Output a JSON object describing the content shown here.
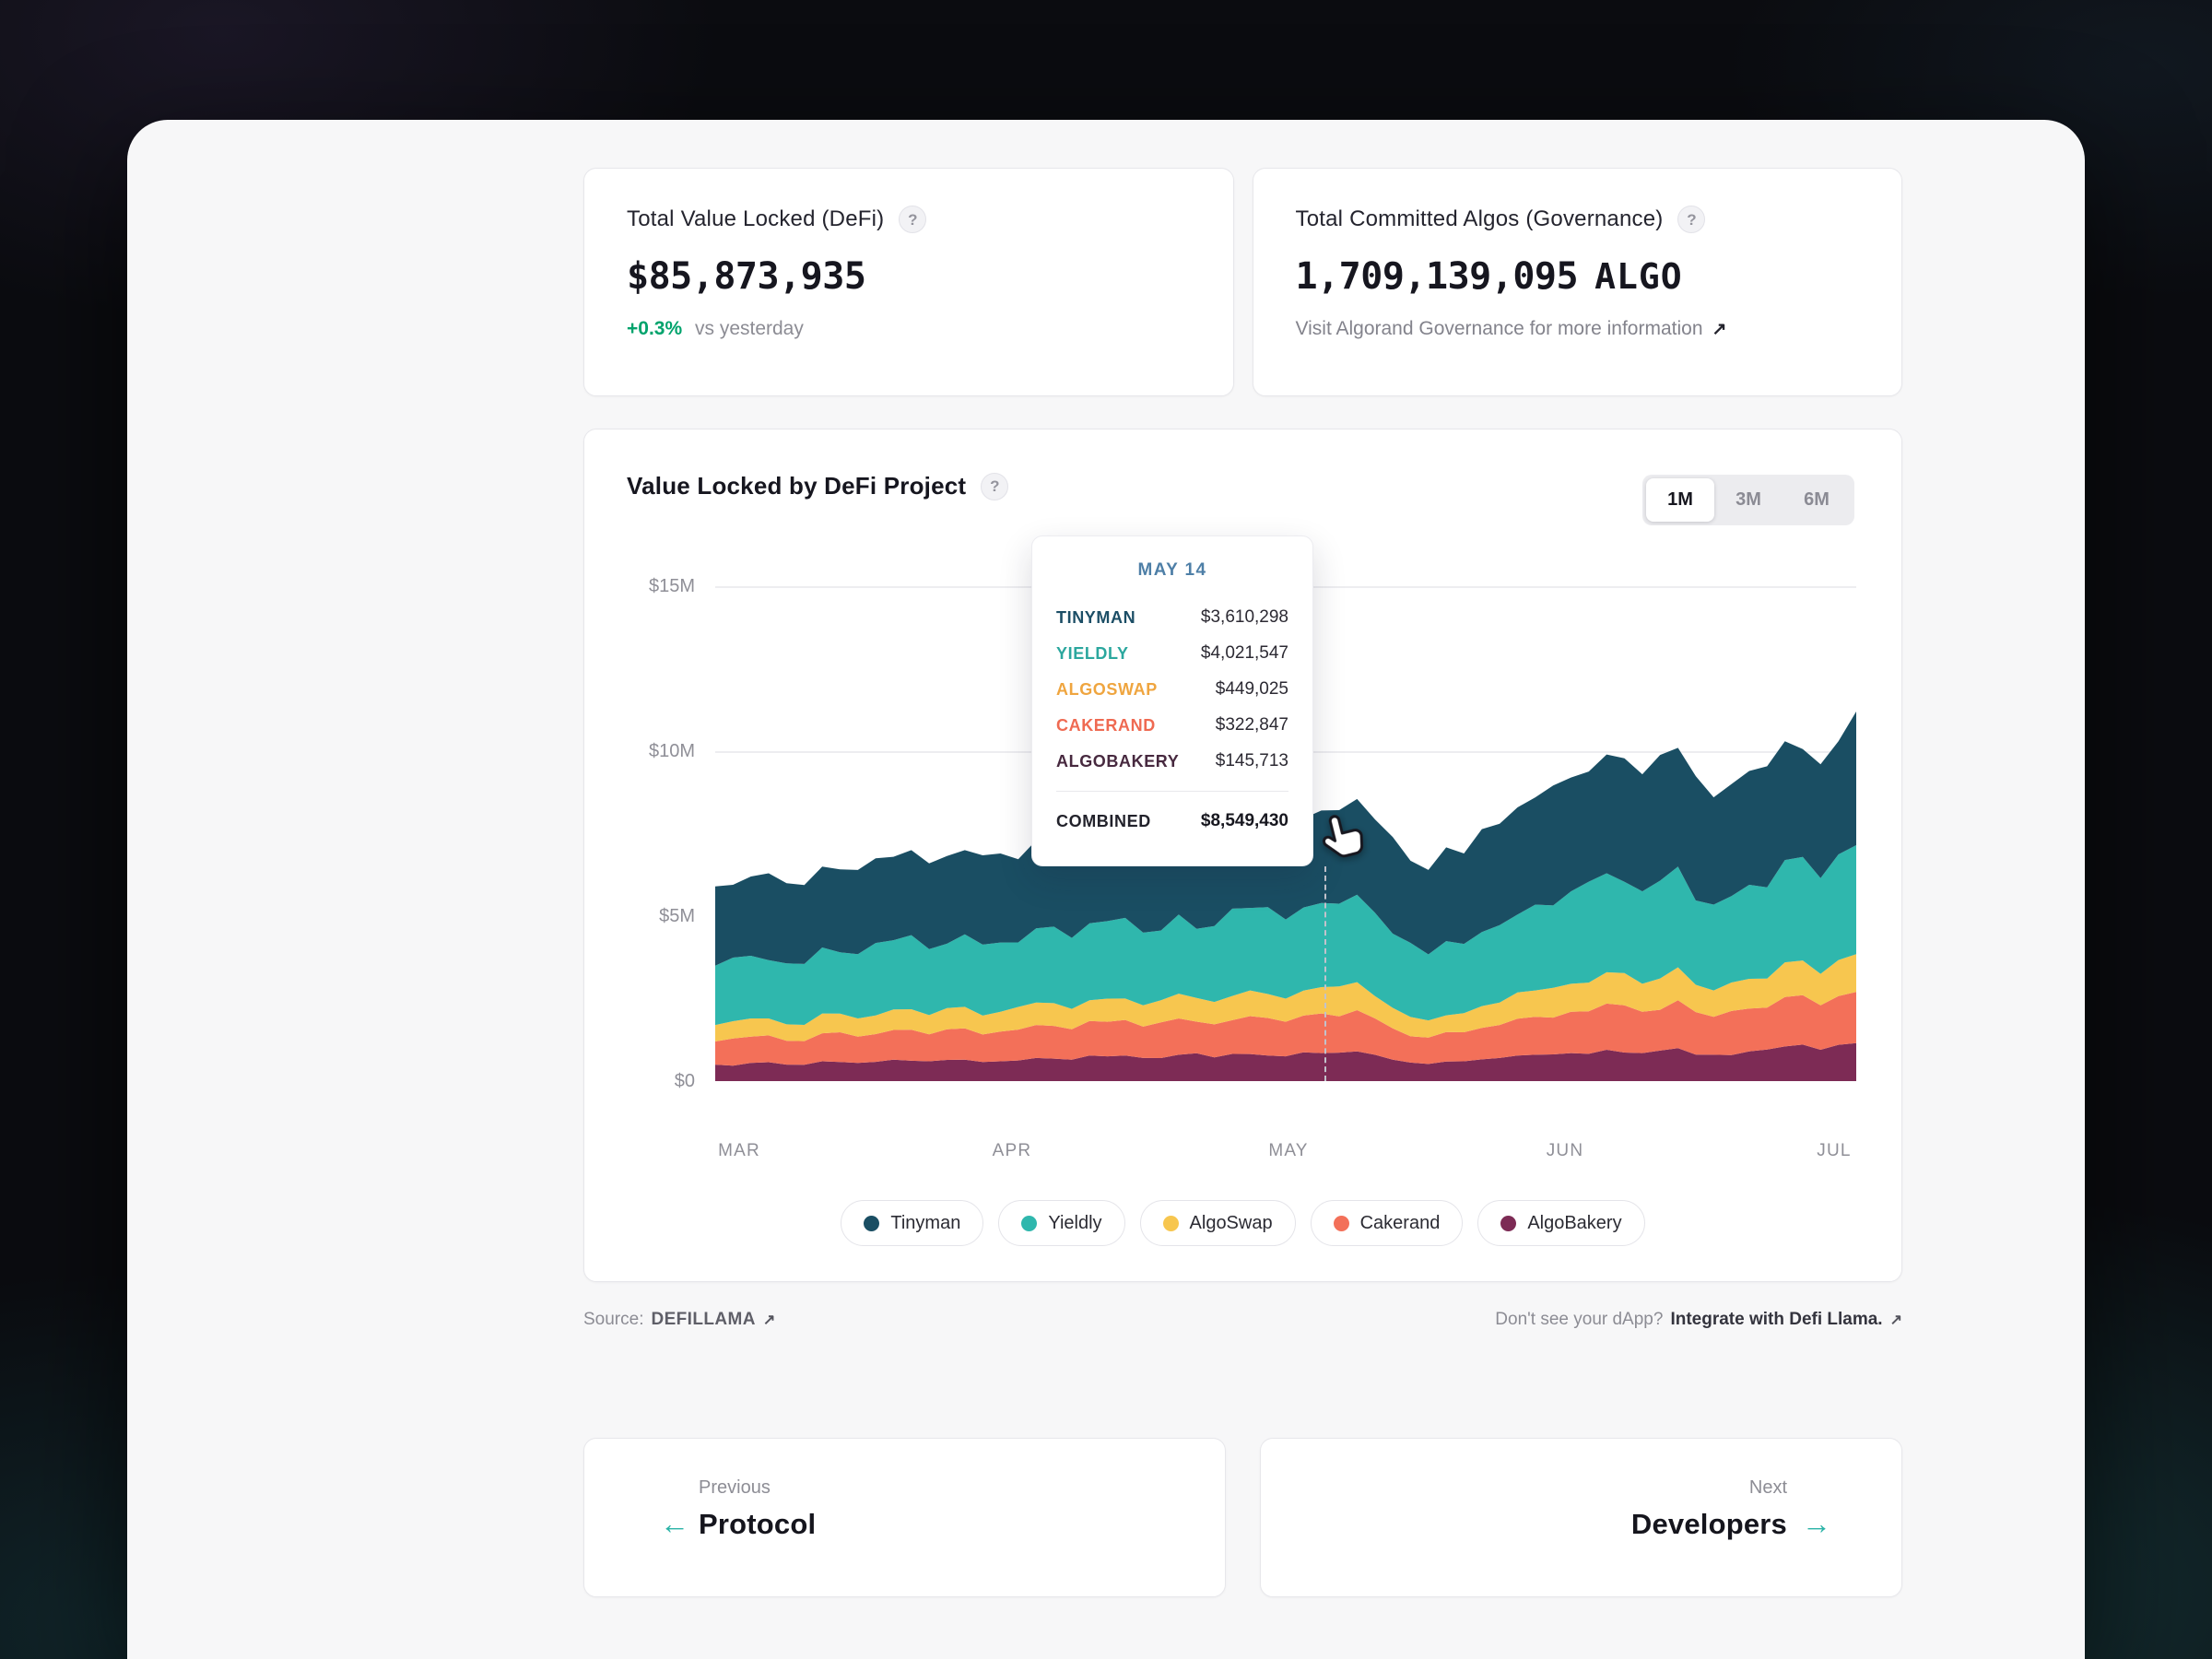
{
  "stats": {
    "tvl": {
      "title": "Total Value Locked (DeFi)",
      "value": "$85,873,935",
      "change": "+0.3%",
      "change_suffix": "vs yesterday"
    },
    "governance": {
      "title": "Total Committed Algos (Governance)",
      "value": "1,709,139,095",
      "unit": "ALGO",
      "link": "Visit Algorand Governance for more information",
      "link_arrow": "↗"
    }
  },
  "chart_card": {
    "title": "Value Locked by DeFi Project",
    "range_options": [
      "1M",
      "3M",
      "6M"
    ],
    "selected_range": "1M"
  },
  "chart_data": {
    "type": "area",
    "stacked": true,
    "title": "Value Locked by DeFi Project",
    "unit": "USD millions",
    "x_ticks": [
      "MAR",
      "APR",
      "MAY",
      "JUN",
      "JUL"
    ],
    "y_tick_labels": [
      "$15M",
      "$10M",
      "$5M",
      "$0"
    ],
    "y_gridlines_musd": [
      15,
      10,
      5
    ],
    "y_max_musd": 15,
    "legend_position": "bottom",
    "hover_x_frac": 0.535,
    "hover_date": "MAY 14",
    "series_order": "top-to-bottom (stacked bottom-to-top in reverse)",
    "series": [
      {
        "name": "Tinyman",
        "color": "#1A4E63",
        "values_musd": [
          2.4,
          2.4,
          2.43,
          2.45,
          2.55,
          2.53,
          2.6,
          2.55,
          2.7,
          2.67,
          2.76,
          2.75,
          2.8,
          2.75,
          2.8,
          2.75,
          2.9,
          2.8,
          2.9,
          2.93,
          2.56,
          2.74,
          3.07,
          3.25,
          3.45,
          3.6,
          3.55,
          3.6,
          3.25,
          3.45,
          3.6,
          3.45,
          4.05
        ]
      },
      {
        "name": "Yieldly",
        "color": "#2FB7AD",
        "values_musd": [
          1.8,
          1.9,
          1.85,
          2.0,
          1.95,
          2.1,
          2.0,
          2.2,
          2.1,
          2.25,
          2.15,
          2.35,
          2.2,
          2.4,
          2.3,
          2.5,
          2.4,
          2.55,
          2.65,
          2.25,
          2.0,
          2.1,
          2.35,
          2.6,
          2.8,
          3.0,
          2.8,
          3.05,
          2.6,
          2.85,
          3.1,
          2.9,
          3.3
        ]
      },
      {
        "name": "AlgoSwap",
        "color": "#F7C64F",
        "values_musd": [
          0.5,
          0.55,
          0.5,
          0.6,
          0.55,
          0.62,
          0.58,
          0.65,
          0.6,
          0.68,
          0.62,
          0.7,
          0.65,
          0.75,
          0.68,
          0.78,
          0.7,
          0.8,
          0.85,
          0.62,
          0.52,
          0.58,
          0.68,
          0.8,
          0.85,
          0.95,
          0.85,
          1.0,
          0.8,
          0.9,
          1.05,
          0.95,
          1.15
        ]
      },
      {
        "name": "Cakerand",
        "color": "#F37059",
        "values_musd": [
          0.7,
          0.8,
          0.72,
          0.85,
          0.8,
          0.9,
          0.82,
          0.95,
          0.9,
          1.0,
          0.92,
          1.05,
          0.95,
          1.1,
          1.0,
          1.15,
          1.05,
          1.2,
          1.25,
          0.95,
          0.8,
          0.88,
          1.0,
          1.15,
          1.25,
          1.4,
          1.25,
          1.45,
          1.15,
          1.3,
          1.5,
          1.35,
          1.55
        ]
      },
      {
        "name": "AlgoBakery",
        "color": "#7D2B55",
        "values_musd": [
          0.5,
          0.55,
          0.5,
          0.6,
          0.55,
          0.65,
          0.6,
          0.65,
          0.6,
          0.7,
          0.65,
          0.75,
          0.7,
          0.8,
          0.72,
          0.82,
          0.75,
          0.85,
          0.9,
          0.65,
          0.52,
          0.6,
          0.7,
          0.8,
          0.85,
          0.95,
          0.85,
          1.0,
          0.8,
          0.9,
          1.05,
          0.95,
          1.15
        ]
      }
    ]
  },
  "tooltip": {
    "date": "MAY 14",
    "rows": [
      {
        "name": "TINYMAN",
        "value": "$3,610,298",
        "color": "#1C4E66"
      },
      {
        "name": "YIELDLY",
        "value": "$4,021,547",
        "color": "#2BA79E"
      },
      {
        "name": "ALGOSWAP",
        "value": "$449,025",
        "color": "#EFA53F"
      },
      {
        "name": "CAKERAND",
        "value": "$322,847",
        "color": "#EF6A52"
      },
      {
        "name": "ALGOBAKERY",
        "value": "$145,713",
        "color": "#47293F"
      }
    ],
    "combined_label": "COMBINED",
    "combined_value": "$8,549,430"
  },
  "source_row": {
    "label": "Source:",
    "name": "DEFILLAMA",
    "arrow": "↗",
    "cta_prefix": "Don't see your dApp?",
    "cta_bold": "Integrate with Defi Llama.",
    "cta_arrow": "↗"
  },
  "nav": {
    "previous_label": "Previous",
    "previous_title": "Protocol",
    "prev_arrow": "←",
    "next_label": "Next",
    "next_title": "Developers",
    "next_arrow": "→"
  },
  "misc": {
    "help": "?"
  },
  "colors": {
    "accent_teal": "#2BB3A7",
    "positive_green": "#00A36C",
    "tooltip_date_blue": "#4E7FA7",
    "panel_bg": "#F7F7F8",
    "card_border": "#E7E7EB"
  }
}
